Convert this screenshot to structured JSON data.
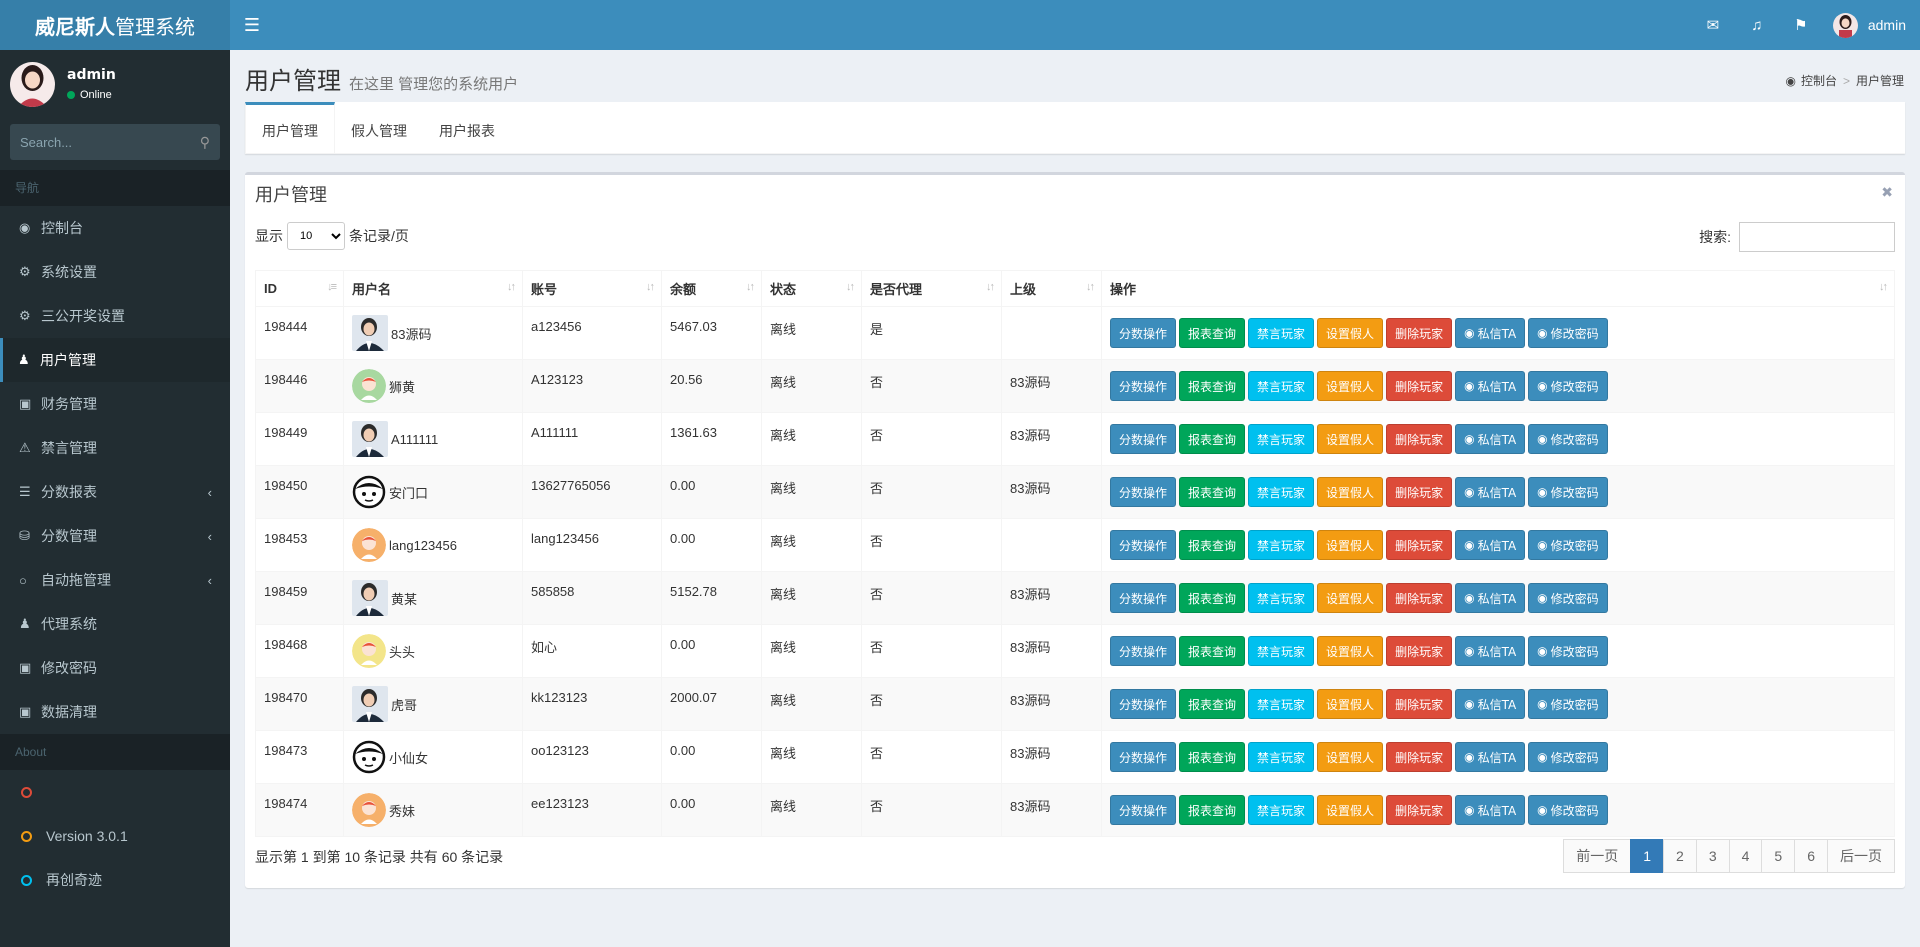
{
  "header": {
    "logo_bold": "威尼斯人",
    "logo_rest": "管理系统",
    "user": "admin"
  },
  "sidebar": {
    "user_name": "admin",
    "status": "Online",
    "search_placeholder": "Search...",
    "nav_header": "导航",
    "items": [
      {
        "label": "控制台",
        "icon": "dashboard-icon"
      },
      {
        "label": "系统设置",
        "icon": "cogs-icon"
      },
      {
        "label": "三公开奖设置",
        "icon": "gear-icon"
      },
      {
        "label": "用户管理",
        "icon": "users-icon",
        "active": true
      },
      {
        "label": "财务管理",
        "icon": "money-icon"
      },
      {
        "label": "禁言管理",
        "icon": "warning-icon"
      },
      {
        "label": "分数报表",
        "icon": "list-icon",
        "chevron": true
      },
      {
        "label": "分数管理",
        "icon": "database-icon",
        "chevron": true
      },
      {
        "label": "自动拖管理",
        "icon": "chat-icon",
        "chevron": true
      },
      {
        "label": "代理系统",
        "icon": "user-plus-icon"
      },
      {
        "label": "修改密码",
        "icon": "cart-icon"
      },
      {
        "label": "数据清理",
        "icon": "trash-icon"
      }
    ],
    "about_header": "About",
    "about_items": [
      {
        "label": "",
        "color": "#dd4b39"
      },
      {
        "label": "Version 3.0.1",
        "color": "#f39c12"
      },
      {
        "label": "再创奇迹",
        "color": "#00c0ef"
      }
    ]
  },
  "page": {
    "title": "用户管理",
    "subtitle": "在这里 管理您的系统用户",
    "breadcrumb_home": "控制台",
    "breadcrumb_current": "用户管理",
    "tabs": [
      "用户管理",
      "假人管理",
      "用户报表"
    ]
  },
  "box": {
    "title": "用户管理",
    "show_label": "显示",
    "per_page": "10",
    "per_page_suffix": "条记录/页",
    "search_label": "搜索:"
  },
  "table": {
    "columns": [
      "ID",
      "用户名",
      "账号",
      "余额",
      "状态",
      "是否代理",
      "上级",
      "操作"
    ],
    "actions": [
      "分数操作",
      "报表查询",
      "禁言玩家",
      "设置假人",
      "删除玩家",
      "私信TA",
      "修改密码"
    ],
    "rows": [
      {
        "id": "198444",
        "name": "83源码",
        "account": "a123456",
        "balance": "5467.03",
        "status": "离线",
        "agent": "是",
        "parent": "",
        "avatar": "photo"
      },
      {
        "id": "198446",
        "name": "狮黄",
        "account": "A123123",
        "balance": "20.56",
        "status": "离线",
        "agent": "否",
        "parent": "83源码",
        "avatar": "green"
      },
      {
        "id": "198449",
        "name": "A111111",
        "account": "A111111",
        "balance": "1361.63",
        "status": "离线",
        "agent": "否",
        "parent": "83源码",
        "avatar": "photo"
      },
      {
        "id": "198450",
        "name": "安门口",
        "account": "13627765056",
        "balance": "0.00",
        "status": "离线",
        "agent": "否",
        "parent": "83源码",
        "avatar": "face"
      },
      {
        "id": "198453",
        "name": "lang123456",
        "account": "lang123456",
        "balance": "0.00",
        "status": "离线",
        "agent": "否",
        "parent": "",
        "avatar": "orange"
      },
      {
        "id": "198459",
        "name": "黄某",
        "account": "585858",
        "balance": "5152.78",
        "status": "离线",
        "agent": "否",
        "parent": "83源码",
        "avatar": "photo"
      },
      {
        "id": "198468",
        "name": "头头",
        "account": "如心",
        "balance": "0.00",
        "status": "离线",
        "agent": "否",
        "parent": "83源码",
        "avatar": "yellow"
      },
      {
        "id": "198470",
        "name": "虎哥",
        "account": "kk123123",
        "balance": "2000.07",
        "status": "离线",
        "agent": "否",
        "parent": "83源码",
        "avatar": "photo"
      },
      {
        "id": "198473",
        "name": "小仙女",
        "account": "oo123123",
        "balance": "0.00",
        "status": "离线",
        "agent": "否",
        "parent": "83源码",
        "avatar": "face"
      },
      {
        "id": "198474",
        "name": "秀妹",
        "account": "ee123123",
        "balance": "0.00",
        "status": "离线",
        "agent": "否",
        "parent": "83源码",
        "avatar": "orange"
      }
    ]
  },
  "footer": {
    "info": "显示第 1 到第 10 条记录 共有 60 条记录",
    "prev": "前一页",
    "pages": [
      "1",
      "2",
      "3",
      "4",
      "5",
      "6"
    ],
    "active_page": "1",
    "next": "后一页"
  }
}
